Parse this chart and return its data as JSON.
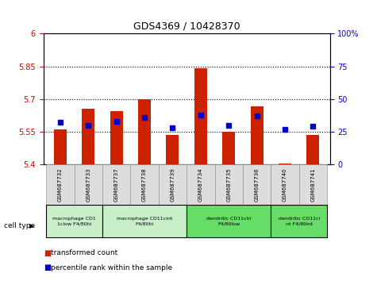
{
  "title": "GDS4369 / 10428370",
  "samples": [
    "GSM687732",
    "GSM687733",
    "GSM687737",
    "GSM687738",
    "GSM687739",
    "GSM687734",
    "GSM687735",
    "GSM687736",
    "GSM687740",
    "GSM687741"
  ],
  "transformed_count": [
    5.56,
    5.655,
    5.645,
    5.7,
    5.535,
    5.84,
    5.55,
    5.665,
    5.405,
    5.535
  ],
  "percentile_rank": [
    32,
    30,
    33,
    36,
    28,
    38,
    30,
    37,
    27,
    29
  ],
  "ymin": 5.4,
  "ymax": 6.0,
  "yticks": [
    5.4,
    5.55,
    5.7,
    5.85,
    6.0
  ],
  "ytick_labels": [
    "5.4",
    "5.55",
    "5.7",
    "5.85",
    "6"
  ],
  "y2min": 0,
  "y2max": 100,
  "y2ticks": [
    0,
    25,
    50,
    75,
    100
  ],
  "y2tick_labels": [
    "0",
    "25",
    "50",
    "75",
    "100%"
  ],
  "bar_color": "#cc2200",
  "dot_color": "#0000cc",
  "groups": [
    {
      "label": "macrophage CD1\n1clow F4/80hi",
      "start": 0,
      "end": 2,
      "color": "#c8f0c8"
    },
    {
      "label": "macrophage CD11cint\nF4/80hi",
      "start": 2,
      "end": 5,
      "color": "#c8f0c8"
    },
    {
      "label": "dendritic CD11chi\nF4/80low",
      "start": 5,
      "end": 8,
      "color": "#66dd66"
    },
    {
      "label": "dendritic CD11ci\nnt F4/80int",
      "start": 8,
      "end": 10,
      "color": "#66dd66"
    }
  ],
  "xlabel": "cell type",
  "legend_red": "transformed count",
  "legend_blue": "percentile rank within the sample",
  "bg_color": "#ffffff",
  "tick_label_color_left": "#cc0000",
  "tick_label_color_right": "#0000cc"
}
